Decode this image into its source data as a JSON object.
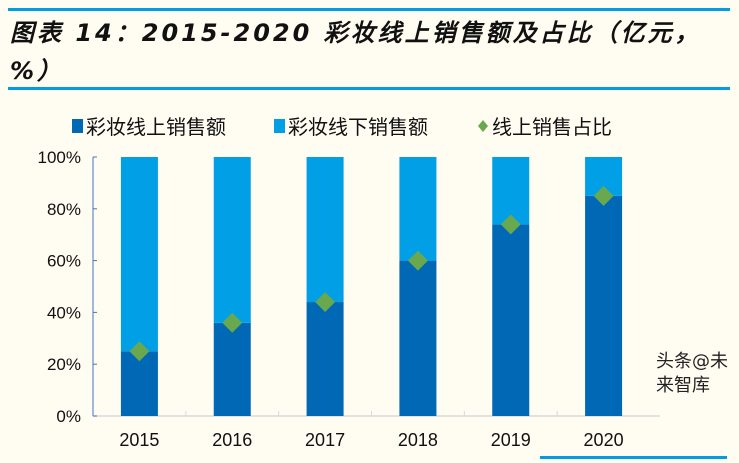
{
  "chart_data": {
    "type": "bar",
    "title": "图表 14：2015-2020 彩妆线上销售额及占比（亿元，%）",
    "categories": [
      "2015",
      "2016",
      "2017",
      "2018",
      "2019",
      "2020"
    ],
    "stacked": true,
    "series": [
      {
        "name": "彩妆线上销售额",
        "type": "bar",
        "color": "#0068b5",
        "values": [
          25,
          36,
          44,
          60,
          74,
          85
        ]
      },
      {
        "name": "彩妆线下销售额",
        "type": "bar",
        "color": "#009fe6",
        "values": [
          75,
          64,
          56,
          40,
          26,
          15
        ]
      },
      {
        "name": "线上销售占比",
        "type": "scatter",
        "marker": "diamond",
        "color": "#6aa84f",
        "values": [
          25,
          36,
          44,
          60,
          74,
          85
        ]
      }
    ],
    "yticks": [
      "0%",
      "20%",
      "40%",
      "60%",
      "80%",
      "100%"
    ],
    "ylim": [
      0,
      100
    ],
    "legend": "top",
    "grid": false
  },
  "watermark": "头条@未来智库"
}
